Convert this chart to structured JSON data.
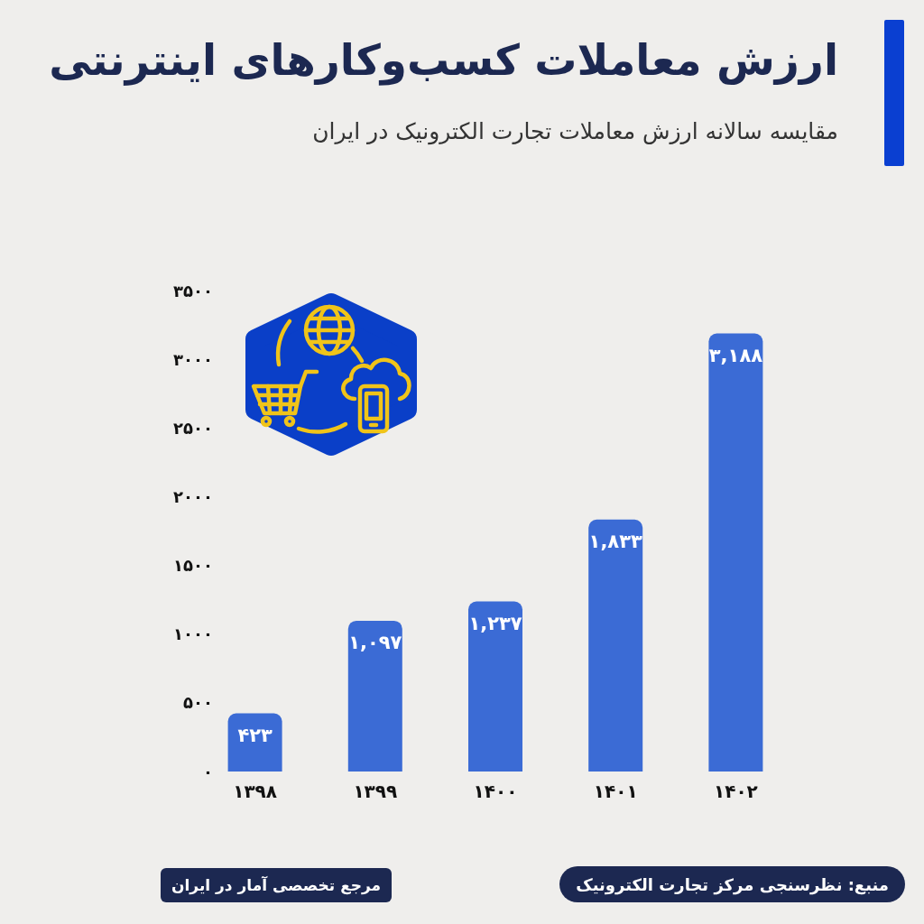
{
  "chart_data": {
    "type": "bar",
    "title": "ارزش معاملات کسب‌وکارهای اینترنتی",
    "subtitle": "مقایسه سالانه ارزش معاملات تجارت الکترونیک در ایران",
    "categories": [
      "۱۳۹۸",
      "۱۳۹۹",
      "۱۴۰۰",
      "۱۴۰۱",
      "۱۴۰۲"
    ],
    "values": [
      423,
      1097,
      1237,
      1833,
      3188
    ],
    "value_labels": [
      "۴۲۳",
      "۱,۰۹۷",
      "۱,۲۳۷",
      "۱,۸۳۳",
      "۳,۱۸۸"
    ],
    "color": "#3b6bd5",
    "ylim": [
      0,
      3500
    ],
    "yticks": [
      {
        "value": 0,
        "label": "۰"
      },
      {
        "value": 500,
        "label": "۵۰۰"
      },
      {
        "value": 1000,
        "label": "۱۰۰۰"
      },
      {
        "value": 1500,
        "label": "۱۵۰۰"
      },
      {
        "value": 2000,
        "label": "۲۰۰۰"
      },
      {
        "value": 2500,
        "label": "۲۵۰۰"
      },
      {
        "value": 3000,
        "label": "۳۰۰۰"
      },
      {
        "value": 3500,
        "label": "۳۵۰۰"
      }
    ],
    "annotations": [
      "منبع: نظرسنجی مرکز تجارت الکترونیک",
      "مرجع تخصصی آمار در ایران"
    ]
  }
}
